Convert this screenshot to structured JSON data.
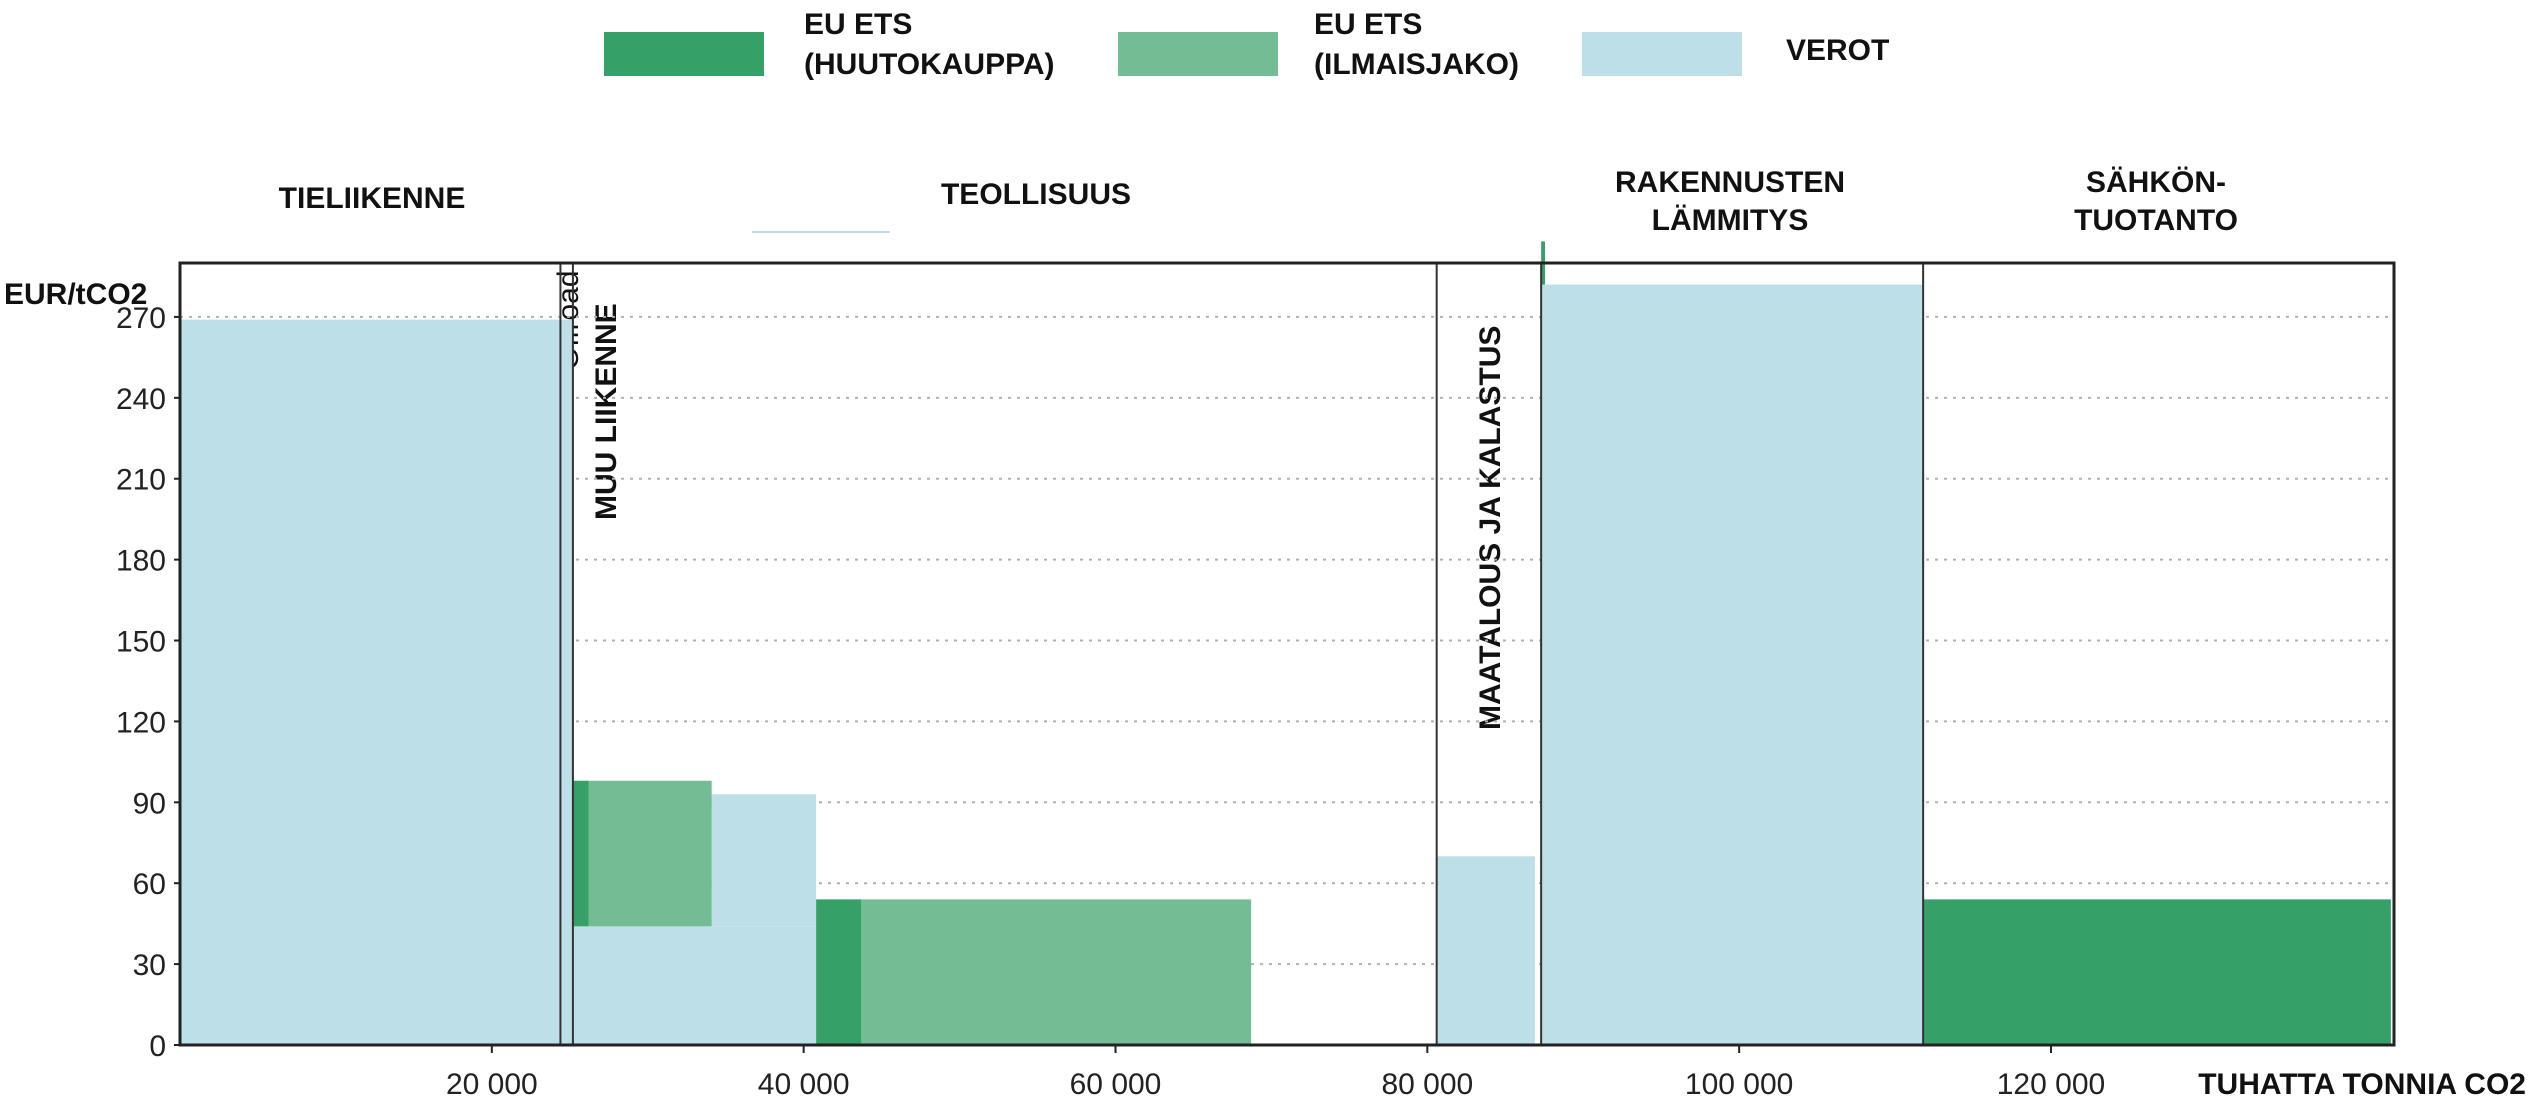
{
  "legend": [
    {
      "line1": "EU ETS",
      "line2": "(HUUTOKAUPPA)",
      "color": "#35a067"
    },
    {
      "line1": "EU ETS",
      "line2": "(ILMAISJAKO)",
      "color": "#73bc94"
    },
    {
      "line1": "VEROT",
      "line2": "",
      "color": "#bde0e8"
    }
  ],
  "chart_data": {
    "type": "variable-width bar (marginal abatement style)",
    "ylabel": "EUR/tCO2",
    "xlabel": "TUHATTA TONNIA CO2",
    "xlim": [
      0,
      142000
    ],
    "ylim": [
      0,
      290
    ],
    "y_ticks": [
      0,
      30,
      60,
      90,
      120,
      150,
      180,
      210,
      240,
      270
    ],
    "y_tick_labels": [
      "0",
      "30",
      "60",
      "90",
      "120",
      "150",
      "180",
      "210",
      "240",
      "270"
    ],
    "x_ticks": [
      20000,
      40000,
      60000,
      80000,
      100000,
      120000
    ],
    "x_tick_labels": [
      "20 000",
      "40 000",
      "60 000",
      "80 000",
      "100 000",
      "120 000"
    ],
    "grid": "horizontal dotted",
    "legend_position": "top-center",
    "sectors": [
      {
        "label": "TIELIIKENNE",
        "x_start": 0,
        "x_end": 24400,
        "label_orientation": "horizontal"
      },
      {
        "label": "Offroad",
        "x_start": 24400,
        "x_end": 25200,
        "label_orientation": "vertical"
      },
      {
        "label": "MUU LIIKENNE",
        "x_start": 25200,
        "x_end": 25200,
        "label_orientation": "vertical"
      },
      {
        "label": "TEOLLISUUS",
        "x_start": 25200,
        "x_end": 80600,
        "label_orientation": "horizontal"
      },
      {
        "label": "MAATALOUS  JA KALASTUS",
        "x_start": 80600,
        "x_end": 87300,
        "label_orientation": "vertical"
      },
      {
        "label": "RAKENNUSTEN\nLÄMMITYS",
        "x_start": 87300,
        "x_end": 111800,
        "label_orientation": "horizontal"
      },
      {
        "label": "SÄHKÖN-\nTUOTANTO",
        "x_start": 111800,
        "x_end": 141800,
        "label_orientation": "horizontal"
      }
    ],
    "bars": [
      {
        "series": "VEROT",
        "x0": 0,
        "x1": 24400,
        "y0": 0,
        "y1": 269
      },
      {
        "series": "VEROT",
        "x0": 24400,
        "x1": 25200,
        "y0": 0,
        "y1": 269
      },
      {
        "series": "VEROT",
        "x0": 25200,
        "x1": 40800,
        "y0": 0,
        "y1": 44
      },
      {
        "series": "VEROT",
        "x0": 34100,
        "x1": 40800,
        "y0": 44,
        "y1": 93
      },
      {
        "series": "EU ETS (HUUTOKAUPPA)",
        "x0": 25200,
        "x1": 26200,
        "y0": 44,
        "y1": 98
      },
      {
        "series": "EU ETS (ILMAISJAKO)",
        "x0": 26200,
        "x1": 34100,
        "y0": 44,
        "y1": 98
      },
      {
        "series": "EU ETS (HUUTOKAUPPA)",
        "x0": 40800,
        "x1": 43700,
        "y0": 0,
        "y1": 54
      },
      {
        "series": "EU ETS (ILMAISJAKO)",
        "x0": 43700,
        "x1": 68700,
        "y0": 0,
        "y1": 54
      },
      {
        "series": "VEROT",
        "x0": 80600,
        "x1": 86900,
        "y0": 0,
        "y1": 70
      },
      {
        "series": "EU ETS (HUUTOKAUPPA)",
        "x0": 87300,
        "x1": 87550,
        "y0": 246,
        "y1": 298
      },
      {
        "series": "VEROT",
        "x0": 87300,
        "x1": 111800,
        "y0": 0,
        "y1": 282
      },
      {
        "series": "EU ETS (HUUTOKAUPPA)",
        "x0": 111800,
        "x1": 141800,
        "y0": 0,
        "y1": 54
      }
    ],
    "divider_lines_x": [
      24400,
      25200,
      80600,
      87300,
      111800
    ]
  }
}
